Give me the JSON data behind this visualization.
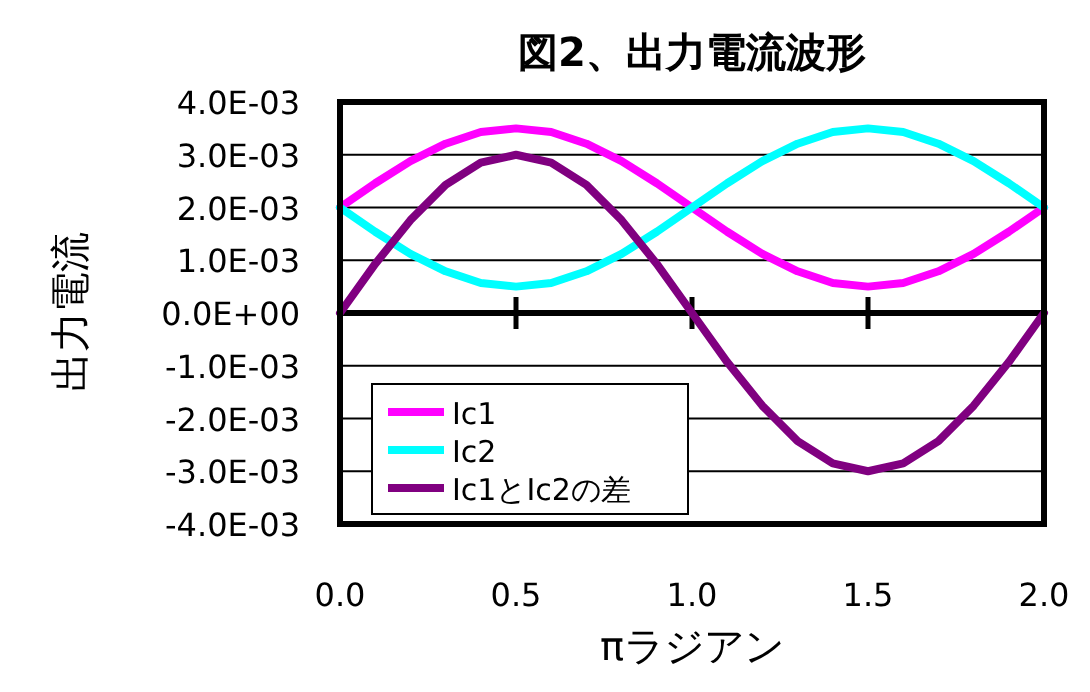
{
  "chart_data": {
    "type": "line",
    "title": "図2、出力電流波形",
    "xlabel": "πラジアン",
    "ylabel": "出力電流",
    "x": [
      0,
      0.1,
      0.2,
      0.3,
      0.4,
      0.5,
      0.6,
      0.7,
      0.8,
      0.9,
      1.0,
      1.1,
      1.2,
      1.3,
      1.4,
      1.5,
      1.6,
      1.7,
      1.8,
      1.9,
      2.0
    ],
    "series": [
      {
        "name": "Ic1",
        "color": "#ff00ff",
        "values": [
          0.002,
          0.00246,
          0.00288,
          0.00321,
          0.00343,
          0.0035,
          0.00343,
          0.00321,
          0.00288,
          0.00246,
          0.002,
          0.00154,
          0.00112,
          0.00079,
          0.00057,
          0.0005,
          0.00057,
          0.00079,
          0.00112,
          0.00154,
          0.002
        ]
      },
      {
        "name": "Ic2",
        "color": "#00ffff",
        "values": [
          0.002,
          0.00154,
          0.00112,
          0.00079,
          0.00057,
          0.0005,
          0.00057,
          0.00079,
          0.00112,
          0.00154,
          0.002,
          0.00246,
          0.00288,
          0.00321,
          0.00343,
          0.0035,
          0.00343,
          0.00321,
          0.00288,
          0.00246,
          0.002
        ]
      },
      {
        "name": "Ic1とIc2の差",
        "color": "#800080",
        "values": [
          0,
          0.00093,
          0.00176,
          0.00243,
          0.00285,
          0.003,
          0.00285,
          0.00243,
          0.00176,
          0.00093,
          0,
          -0.00093,
          -0.00176,
          -0.00243,
          -0.00285,
          -0.003,
          -0.00285,
          -0.00243,
          -0.00176,
          -0.00093,
          0
        ]
      }
    ],
    "xlim": [
      0,
      2
    ],
    "xticks": [
      {
        "value": 0,
        "label": "0.0"
      },
      {
        "value": 0.5,
        "label": "0.5"
      },
      {
        "value": 1,
        "label": "1.0"
      },
      {
        "value": 1.5,
        "label": "1.5"
      },
      {
        "value": 2,
        "label": "2.0"
      }
    ],
    "ylim": [
      -0.004,
      0.004
    ],
    "yticks": [
      {
        "value": 0.004,
        "label": "4.0E-03"
      },
      {
        "value": 0.003,
        "label": "3.0E-03"
      },
      {
        "value": 0.002,
        "label": "2.0E-03"
      },
      {
        "value": 0.001,
        "label": "1.0E-03"
      },
      {
        "value": 0,
        "label": "0.0E+00"
      },
      {
        "value": -0.001,
        "label": "-1.0E-03"
      },
      {
        "value": -0.002,
        "label": "-2.0E-03"
      },
      {
        "value": -0.003,
        "label": "-3.0E-03"
      },
      {
        "value": -0.004,
        "label": "-4.0E-03"
      }
    ],
    "grid": "y",
    "legend": "bottom left",
    "marker": "none",
    "line_style": "solid"
  }
}
